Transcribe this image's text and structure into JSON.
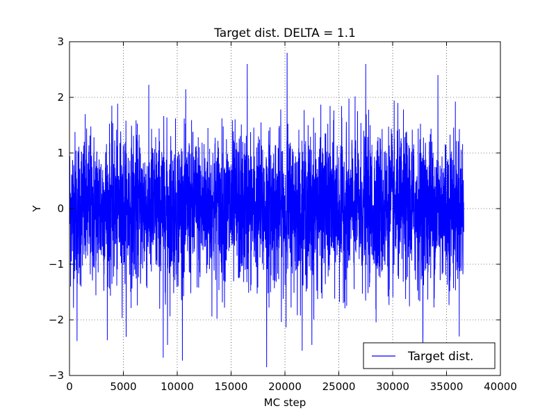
{
  "chart_data": {
    "type": "line",
    "title": "Target dist. DELTA = 1.1",
    "xlabel": "MC step",
    "ylabel": "Y",
    "xlim": [
      0,
      40000
    ],
    "ylim": [
      -3,
      3
    ],
    "x_ticks": [
      0,
      5000,
      10000,
      15000,
      20000,
      25000,
      30000,
      35000,
      40000
    ],
    "x_tick_labels": [
      "0",
      "5000",
      "10000",
      "15000",
      "20000",
      "25000",
      "30000",
      "35000",
      "40000"
    ],
    "y_ticks": [
      3,
      2,
      1,
      0,
      -1,
      -2,
      -3
    ],
    "y_tick_labels": [
      "3",
      "2",
      "1",
      "0",
      "−1",
      "−2",
      "−3"
    ],
    "grid": true,
    "legend_position": "lower-right",
    "series": [
      {
        "name": "Target dist.",
        "color": "#0000ff",
        "x_start": 0,
        "x_end": 36600,
        "typical_range": [
          -1.3,
          1.3
        ],
        "min": -2.85,
        "max": 2.8,
        "extremes": [
          {
            "x": 700,
            "y": -2.38
          },
          {
            "x": 8700,
            "y": -2.68
          },
          {
            "x": 9100,
            "y": -2.45
          },
          {
            "x": 16500,
            "y": 2.6
          },
          {
            "x": 18300,
            "y": -2.85
          },
          {
            "x": 20200,
            "y": 2.8
          },
          {
            "x": 22500,
            "y": -2.45
          },
          {
            "x": 27500,
            "y": 2.6
          },
          {
            "x": 32800,
            "y": -2.45
          },
          {
            "x": 34200,
            "y": 2.4
          }
        ]
      }
    ]
  }
}
